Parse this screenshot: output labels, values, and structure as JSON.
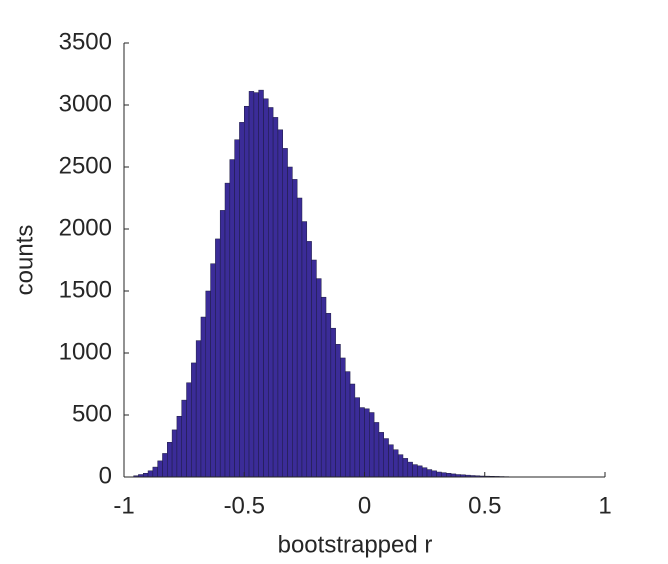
{
  "chart_data": {
    "type": "histogram",
    "xlabel": "bootstrapped r",
    "ylabel": "counts",
    "bins": [
      -0.96,
      -0.94,
      -0.92,
      -0.9,
      -0.88,
      -0.86,
      -0.84,
      -0.82,
      -0.8,
      -0.78,
      -0.76,
      -0.74,
      -0.72,
      -0.7,
      -0.68,
      -0.66,
      -0.64,
      -0.62,
      -0.6,
      -0.58,
      -0.56,
      -0.54,
      -0.52,
      -0.5,
      -0.48,
      -0.46,
      -0.44,
      -0.42,
      -0.4,
      -0.38,
      -0.36,
      -0.34,
      -0.32,
      -0.3,
      -0.28,
      -0.26,
      -0.24,
      -0.22,
      -0.2,
      -0.18,
      -0.16,
      -0.14,
      -0.12,
      -0.1,
      -0.08,
      -0.06,
      -0.04,
      -0.02,
      0,
      0.02,
      0.04,
      0.06,
      0.08,
      0.1,
      0.12,
      0.14,
      0.16,
      0.18,
      0.2,
      0.22,
      0.24,
      0.26,
      0.28,
      0.3,
      0.32,
      0.34,
      0.36,
      0.38,
      0.4,
      0.42,
      0.44,
      0.46,
      0.48,
      0.5,
      0.52,
      0.54,
      0.56,
      0.58,
      0.6,
      0.62,
      0.64,
      0.66
    ],
    "values": [
      10,
      20,
      30,
      50,
      80,
      130,
      190,
      280,
      380,
      490,
      620,
      760,
      920,
      1100,
      1290,
      1500,
      1720,
      1920,
      2150,
      2370,
      2560,
      2720,
      2860,
      2990,
      3110,
      3100,
      3120,
      3050,
      2980,
      2900,
      2800,
      2650,
      2500,
      2400,
      2250,
      2060,
      1900,
      1750,
      1600,
      1450,
      1320,
      1200,
      1070,
      960,
      850,
      750,
      640,
      560,
      550,
      520,
      440,
      360,
      310,
      260,
      220,
      180,
      150,
      120,
      100,
      90,
      75,
      60,
      50,
      40,
      35,
      30,
      25,
      20,
      18,
      15,
      12,
      10,
      8,
      7,
      6,
      5,
      4,
      3,
      2,
      2,
      1
    ],
    "color": "#3b2c98",
    "edgecolor": "#1c1a40",
    "xlim": [
      -1,
      1
    ],
    "xticks": [
      -1,
      -0.5,
      0,
      0.5,
      1
    ],
    "ylim": [
      0,
      3500
    ],
    "yticks": [
      0,
      500,
      1000,
      1500,
      2000,
      2500,
      3000,
      3500
    ]
  }
}
